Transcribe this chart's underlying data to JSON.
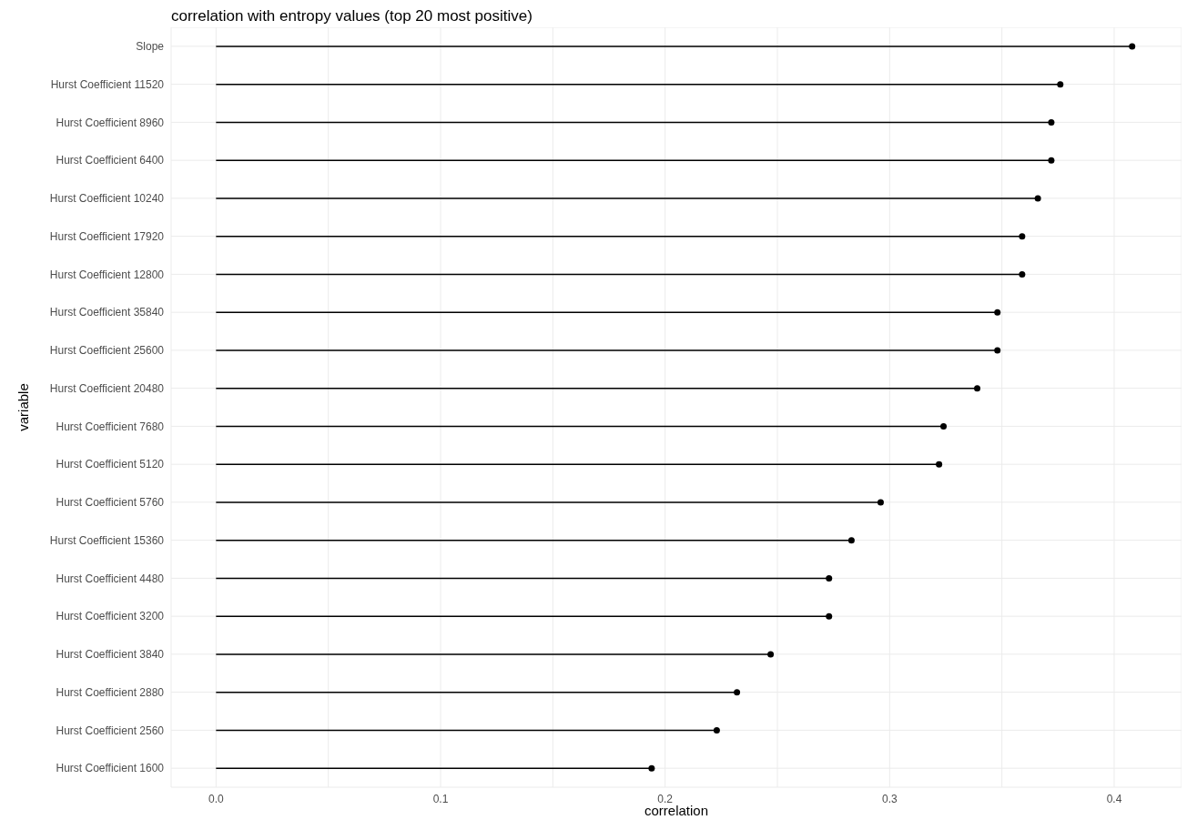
{
  "chart_data": {
    "type": "lollipop",
    "orientation": "horizontal",
    "title": "correlation with entropy values (top 20 most positive)",
    "xlabel": "correlation",
    "ylabel": "variable",
    "categories": [
      "Slope",
      "Hurst Coefficient 11520",
      "Hurst Coefficient 8960",
      "Hurst Coefficient 6400",
      "Hurst Coefficient 10240",
      "Hurst Coefficient 17920",
      "Hurst Coefficient 12800",
      "Hurst Coefficient 35840",
      "Hurst Coefficient 25600",
      "Hurst Coefficient 20480",
      "Hurst Coefficient 7680",
      "Hurst Coefficient 5120",
      "Hurst Coefficient 5760",
      "Hurst Coefficient 15360",
      "Hurst Coefficient 4480",
      "Hurst Coefficient 3200",
      "Hurst Coefficient 3840",
      "Hurst Coefficient 2880",
      "Hurst Coefficient 2560",
      "Hurst Coefficient 1600"
    ],
    "values": [
      0.408,
      0.376,
      0.372,
      0.372,
      0.366,
      0.359,
      0.359,
      0.348,
      0.348,
      0.339,
      0.324,
      0.322,
      0.296,
      0.283,
      0.273,
      0.273,
      0.247,
      0.232,
      0.223,
      0.194
    ],
    "color": "#000000",
    "marker": "circle",
    "grid": true,
    "xlim": [
      -0.02,
      0.43
    ],
    "xticks": [
      {
        "value": 0,
        "label": "0.0"
      },
      {
        "value": 0.05,
        "label": null
      },
      0.1,
      {
        "value": 0.15,
        "label": null
      },
      0.2,
      {
        "value": 0.25,
        "label": null
      },
      0.3,
      {
        "value": 0.35,
        "label": null
      },
      0.4
    ]
  }
}
